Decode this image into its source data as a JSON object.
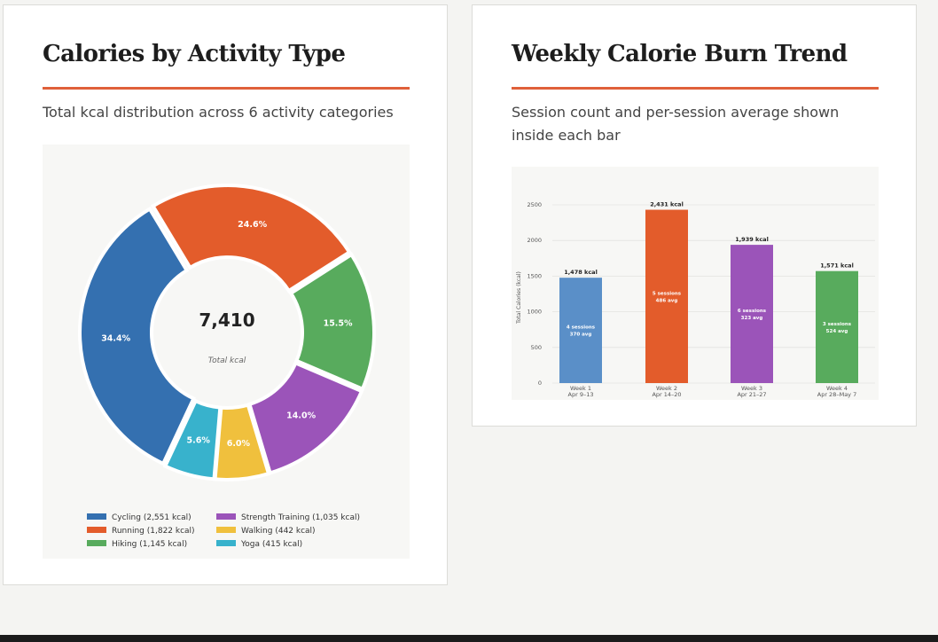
{
  "cards": [
    {
      "title": "Calories by Activity Type",
      "subtitle": "Total kcal distribution across 6 activity categories",
      "chart_center": {
        "total": "7,410",
        "label": "Total kcal"
      }
    },
    {
      "title": "Weekly Calorie Burn Trend",
      "subtitle": "Session count and per-session average shown inside each bar"
    }
  ],
  "colors": {
    "accent_rule": "#e0603a",
    "cycling": "#3470b0",
    "running": "#e35c2b",
    "hiking": "#58ab5d",
    "strength": "#9b54b9",
    "walking": "#f0c03d",
    "yoga": "#38b2cc",
    "week1": "#5a8fc8",
    "week2": "#e35c2b",
    "week3": "#9b54b9",
    "week4": "#58ab5d"
  },
  "chart_data": [
    {
      "type": "pie",
      "title": "Calories by Activity Type",
      "subtitle": "Total kcal distribution across 6 activity categories",
      "center_text": "7,410",
      "center_label": "Total kcal",
      "slices": [
        {
          "name": "Cycling",
          "value": 2551,
          "percent_label": "34.4%",
          "legend_label": "Cycling (2,551 kcal)",
          "color": "#3470b0"
        },
        {
          "name": "Running",
          "value": 1822,
          "percent_label": "24.6%",
          "legend_label": "Running (1,822 kcal)",
          "color": "#e35c2b"
        },
        {
          "name": "Hiking",
          "value": 1145,
          "percent_label": "15.5%",
          "legend_label": "Hiking (1,145 kcal)",
          "color": "#58ab5d"
        },
        {
          "name": "Strength Training",
          "value": 1035,
          "percent_label": "14.0%",
          "legend_label": "Strength Training (1,035 kcal)",
          "color": "#9b54b9"
        },
        {
          "name": "Walking",
          "value": 442,
          "percent_label": "6.0%",
          "legend_label": "Walking (442 kcal)",
          "color": "#f0c03d"
        },
        {
          "name": "Yoga",
          "value": 415,
          "percent_label": "5.6%",
          "legend_label": "Yoga (415 kcal)",
          "color": "#38b2cc"
        }
      ],
      "legend_placement": "bottom"
    },
    {
      "type": "bar",
      "title": "Weekly Calorie Burn Trend",
      "subtitle": "Session count and per-session average shown inside each bar",
      "ylabel": "Total Calories (kcal)",
      "ylim": [
        0,
        2700
      ],
      "yticks": [
        0,
        500,
        1000,
        1500,
        2000,
        2500
      ],
      "grid": true,
      "categories": [
        {
          "line1": "Week 1",
          "line2": "Apr 9–13"
        },
        {
          "line1": "Week 2",
          "line2": "Apr 14–20"
        },
        {
          "line1": "Week 3",
          "line2": "Apr 21–27"
        },
        {
          "line1": "Week 4",
          "line2": "Apr 28–May 7"
        }
      ],
      "values": [
        1478,
        2431,
        1939,
        1571
      ],
      "value_labels": [
        "1,478 kcal",
        "2,431 kcal",
        "1,939 kcal",
        "1,571 kcal"
      ],
      "inner_labels": [
        {
          "sessions": "4 sessions",
          "avg": "370 avg"
        },
        {
          "sessions": "5 sessions",
          "avg": "486 avg"
        },
        {
          "sessions": "6 sessions",
          "avg": "323 avg"
        },
        {
          "sessions": "3 sessions",
          "avg": "524 avg"
        }
      ],
      "colors": [
        "#5a8fc8",
        "#e35c2b",
        "#9b54b9",
        "#58ab5d"
      ]
    }
  ]
}
